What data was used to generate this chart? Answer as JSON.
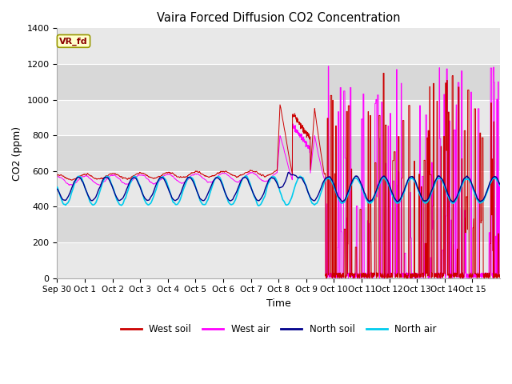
{
  "title": "Vaira Forced Diffusion CO2 Concentration",
  "xlabel": "Time",
  "ylabel": "CO2 (ppm)",
  "ylim": [
    0,
    1400
  ],
  "tick_labels": [
    "Sep 30",
    "Oct 1",
    "Oct 2",
    "Oct 3",
    "Oct 4",
    "Oct 5",
    "Oct 6",
    "Oct 7",
    "Oct 8",
    "Oct 9",
    "Oct 10",
    "Oct 11",
    "Oct 12",
    "Oct 13",
    "Oct 14",
    "Oct 15"
  ],
  "legend_label": "VR_fd",
  "colors": {
    "west_soil": "#cc0000",
    "west_air": "#ff00ff",
    "north_soil": "#00008b",
    "north_air": "#00ccee"
  },
  "band_colors": [
    "#e8e8e8",
    "#d8d8d8"
  ],
  "background_color": "#ffffff"
}
